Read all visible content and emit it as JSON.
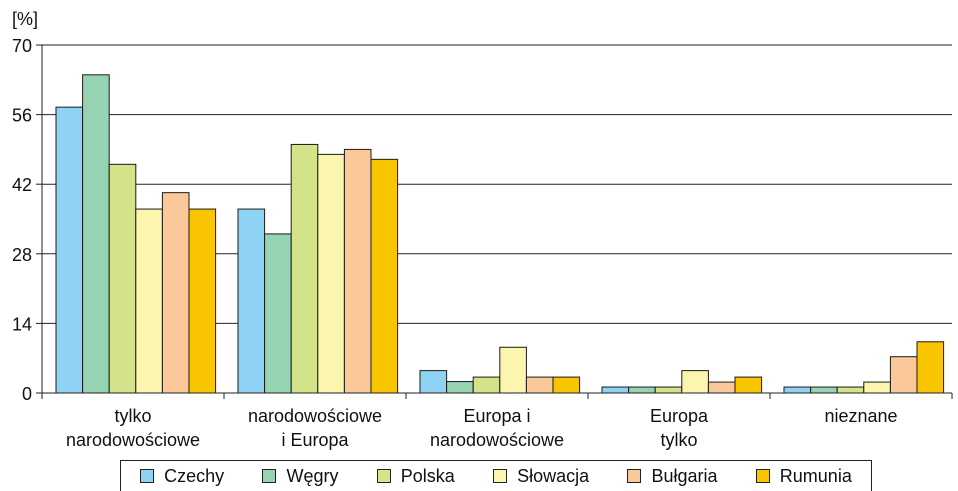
{
  "chart_data": {
    "type": "bar",
    "ylabel": "[%]",
    "ylim": [
      0,
      70
    ],
    "yticks": [
      0,
      14,
      28,
      42,
      56,
      70
    ],
    "grid": true,
    "legend_position": "bottom",
    "categories": [
      [
        "tylko",
        "narodowościowe"
      ],
      [
        "narodowościowe",
        "i Europa"
      ],
      [
        "Europa i",
        "narodowościowe"
      ],
      [
        "Europa",
        "tylko"
      ],
      [
        "nieznane"
      ]
    ],
    "series": [
      {
        "name": "Czechy",
        "color": "#8fd3f4",
        "values": [
          57.5,
          37,
          4.5,
          1.2,
          1.2
        ]
      },
      {
        "name": "Węgry",
        "color": "#96d3b3",
        "values": [
          64,
          32,
          2.3,
          1.2,
          1.2
        ]
      },
      {
        "name": "Polska",
        "color": "#d2e38a",
        "values": [
          46,
          50,
          3.2,
          1.2,
          1.2
        ]
      },
      {
        "name": "Słowacja",
        "color": "#fbf5ae",
        "values": [
          37,
          48,
          9.2,
          4.5,
          2.2
        ]
      },
      {
        "name": "Bułgaria",
        "color": "#fbc89a",
        "values": [
          40.3,
          49,
          3.2,
          2.2,
          7.3
        ]
      },
      {
        "name": "Rumunia",
        "color": "#f9c400",
        "values": [
          37,
          47,
          3.2,
          3.2,
          10.3
        ]
      }
    ]
  }
}
